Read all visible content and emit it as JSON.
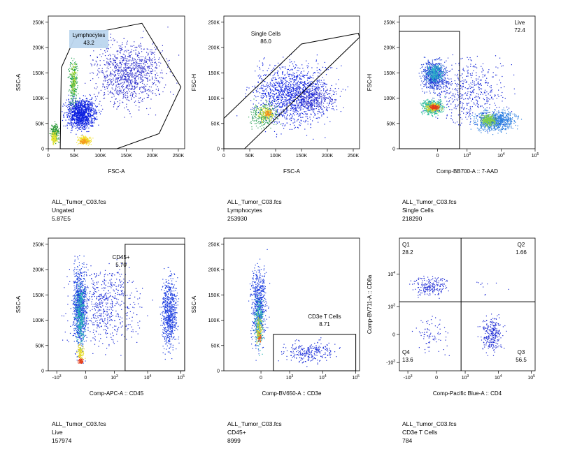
{
  "chart_data": [
    {
      "type": "scatter",
      "subtype": "flow-cytometry-density",
      "title": "ALL_Tumor_C03.fcs",
      "population": "Ungated",
      "event_count": "5.87E5",
      "xlabel": "FSC-A",
      "ylabel": "SSC-A",
      "xscale": "linear",
      "xlim": [
        0,
        262144
      ],
      "ylim": [
        0,
        262144
      ],
      "xticks": [
        {
          "v": 0,
          "l": "0"
        },
        {
          "v": 50000,
          "l": "50K"
        },
        {
          "v": 100000,
          "l": "100K"
        },
        {
          "v": 150000,
          "l": "150K"
        },
        {
          "v": 200000,
          "l": "200K"
        },
        {
          "v": 250000,
          "l": "250K"
        }
      ],
      "yticks": [
        {
          "v": 0,
          "l": "0"
        },
        {
          "v": 50000,
          "l": "50K"
        },
        {
          "v": 100000,
          "l": "100K"
        },
        {
          "v": 150000,
          "l": "150K"
        },
        {
          "v": 200000,
          "l": "200K"
        },
        {
          "v": 250000,
          "l": "250K"
        }
      ],
      "gates": [
        {
          "name": "Lymphocytes",
          "percent": "43.2",
          "label_position": "top-left",
          "label_highlight": true,
          "polygon": [
            [
              52000,
              222000
            ],
            [
              180000,
              248000
            ],
            [
              255000,
              122000
            ],
            [
              213000,
              30000
            ],
            [
              132000,
              0
            ],
            [
              23000,
              0
            ],
            [
              25000,
              160000
            ]
          ]
        }
      ],
      "clusters": [
        {
          "x": [
            20000,
            105000
          ],
          "y": [
            25000,
            115000
          ],
          "n": 1200,
          "color": "#0d21e0"
        },
        {
          "x": [
            55000,
            255000
          ],
          "y": [
            50000,
            245000
          ],
          "n": 1100,
          "color": "#2a2ccc"
        },
        {
          "x": [
            35000,
            60000
          ],
          "y": [
            60000,
            200000
          ],
          "n": 220,
          "color": "#1fa04e"
        },
        {
          "x": [
            40000,
            56000
          ],
          "y": [
            90000,
            180000
          ],
          "n": 90,
          "color": "#9bd12a"
        },
        {
          "x": [
            0,
            25000
          ],
          "y": [
            5000,
            60000
          ],
          "n": 220,
          "color": "#2e9a3a"
        },
        {
          "x": [
            3000,
            18000
          ],
          "y": [
            5000,
            40000
          ],
          "n": 140,
          "color": "#e7e32e"
        },
        {
          "x": [
            50000,
            90000
          ],
          "y": [
            5000,
            30000
          ],
          "n": 180,
          "color": "#f2df25"
        },
        {
          "x": [
            55000,
            80000
          ],
          "y": [
            8000,
            22000
          ],
          "n": 80,
          "color": "#f49a1c"
        }
      ]
    },
    {
      "type": "scatter",
      "subtype": "flow-cytometry-density",
      "title": "ALL_Tumor_C03.fcs",
      "population": "Lymphocytes",
      "event_count": "253930",
      "xlabel": "FSC-A",
      "ylabel": "FSC-H",
      "xscale": "linear",
      "xlim": [
        0,
        262144
      ],
      "ylim": [
        0,
        262144
      ],
      "xticks": [
        {
          "v": 0,
          "l": "0"
        },
        {
          "v": 50000,
          "l": "50K"
        },
        {
          "v": 100000,
          "l": "100K"
        },
        {
          "v": 150000,
          "l": "150K"
        },
        {
          "v": 200000,
          "l": "200K"
        },
        {
          "v": 250000,
          "l": "250K"
        }
      ],
      "yticks": [
        {
          "v": 0,
          "l": "0"
        },
        {
          "v": 50000,
          "l": "50K"
        },
        {
          "v": 100000,
          "l": "100K"
        },
        {
          "v": 150000,
          "l": "150K"
        },
        {
          "v": 200000,
          "l": "200K"
        },
        {
          "v": 250000,
          "l": "250K"
        }
      ],
      "gates": [
        {
          "name": "Single Cells",
          "percent": "86.0",
          "label_position": "top-left",
          "label_highlight": false,
          "polygon": [
            [
              0,
              60000
            ],
            [
              150000,
              207000
            ],
            [
              260000,
              228000
            ],
            [
              262000,
              220000
            ],
            [
              40000,
              0
            ],
            [
              0,
              0
            ]
          ]
        }
      ],
      "clusters": [
        {
          "x": [
            20000,
            250000
          ],
          "y": [
            15000,
            200000
          ],
          "n": 1400,
          "color": "#0d21e0"
        },
        {
          "x": [
            100000,
            240000
          ],
          "y": [
            60000,
            140000
          ],
          "n": 300,
          "color": "#3a36c8"
        },
        {
          "x": [
            35000,
            120000
          ],
          "y": [
            30000,
            105000
          ],
          "n": 240,
          "color": "#2b9f54"
        },
        {
          "x": [
            60000,
            105000
          ],
          "y": [
            50000,
            90000
          ],
          "n": 120,
          "color": "#e3e32a"
        },
        {
          "x": [
            75000,
            95000
          ],
          "y": [
            60000,
            80000
          ],
          "n": 50,
          "color": "#f0901b"
        }
      ]
    },
    {
      "type": "scatter",
      "subtype": "flow-cytometry-density",
      "title": "ALL_Tumor_C03.fcs",
      "population": "Single Cells",
      "event_count": "218290",
      "xlabel": "Comp-BB700-A :: 7-AAD",
      "ylabel": "FSC-H",
      "xscale": "biexponential",
      "xlim": [
        -1800,
        100000
      ],
      "ylim": [
        0,
        262144
      ],
      "xticks": [
        {
          "v": 0,
          "l": "0"
        },
        {
          "v": 1000,
          "l": "10^3"
        },
        {
          "v": 10000,
          "l": "10^4"
        },
        {
          "v": 100000,
          "l": "10^5"
        }
      ],
      "yticks": [
        {
          "v": 0,
          "l": "0"
        },
        {
          "v": 50000,
          "l": "50K"
        },
        {
          "v": 100000,
          "l": "100K"
        },
        {
          "v": 150000,
          "l": "150K"
        },
        {
          "v": 200000,
          "l": "200K"
        },
        {
          "v": 250000,
          "l": "250K"
        }
      ],
      "gates": [
        {
          "name": "Live",
          "percent": "72.4",
          "label_position": "top-right",
          "label_highlight": false,
          "rect": {
            "x1": -1800,
            "x2": 600,
            "y1": 0,
            "y2": 232000
          }
        }
      ],
      "clusters": [
        {
          "x": [
            -600,
            400
          ],
          "y": [
            100000,
            190000
          ],
          "n": 700,
          "color": "#1f3fd8"
        },
        {
          "x": [
            -400,
            250
          ],
          "y": [
            125000,
            175000
          ],
          "n": 260,
          "color": "#2bb0c6"
        },
        {
          "x": [
            -600,
            300
          ],
          "y": [
            60000,
            105000
          ],
          "n": 500,
          "color": "#2bbb9c"
        },
        {
          "x": [
            -400,
            150
          ],
          "y": [
            70000,
            95000
          ],
          "n": 220,
          "color": "#e9d72a"
        },
        {
          "x": [
            -280,
            80
          ],
          "y": [
            75000,
            90000
          ],
          "n": 160,
          "color": "#e33b1a"
        },
        {
          "x": [
            900,
            50000
          ],
          "y": [
            25000,
            85000
          ],
          "n": 800,
          "color": "#2a7de0"
        },
        {
          "x": [
            2000,
            9000
          ],
          "y": [
            40000,
            75000
          ],
          "n": 260,
          "color": "#7fd04a"
        },
        {
          "x": [
            -800,
            60000
          ],
          "y": [
            15000,
            210000
          ],
          "n": 500,
          "color": "#1324d6"
        }
      ]
    },
    {
      "type": "scatter",
      "subtype": "flow-cytometry-density",
      "title": "ALL_Tumor_C03.fcs",
      "population": "Live",
      "event_count": "157974",
      "xlabel": "Comp-APC-A :: CD45",
      "ylabel": "SSC-A",
      "xscale": "biexponential",
      "xlim": [
        -1800,
        130000
      ],
      "ylim": [
        0,
        262144
      ],
      "xticks": [
        {
          "v": -1000,
          "l": "-10^3"
        },
        {
          "v": 0,
          "l": "0"
        },
        {
          "v": 1000,
          "l": "10^3"
        },
        {
          "v": 10000,
          "l": "10^4"
        },
        {
          "v": 100000,
          "l": "10^5"
        }
      ],
      "yticks": [
        {
          "v": 0,
          "l": "0"
        },
        {
          "v": 50000,
          "l": "50K"
        },
        {
          "v": 100000,
          "l": "100K"
        },
        {
          "v": 150000,
          "l": "150K"
        },
        {
          "v": 200000,
          "l": "200K"
        },
        {
          "v": 250000,
          "l": "250K"
        }
      ],
      "gates": [
        {
          "name": "CD45+",
          "percent": "5.70",
          "label_position": "top-left",
          "label_highlight": false,
          "rect": {
            "x1": 2100,
            "x2": 160000,
            "y1": 0,
            "y2": 250000
          }
        }
      ],
      "clusters": [
        {
          "x": [
            -450,
            120
          ],
          "y": [
            10000,
            245000
          ],
          "n": 900,
          "color": "#1c45e0"
        },
        {
          "x": [
            -350,
            50
          ],
          "y": [
            20000,
            200000
          ],
          "n": 350,
          "color": "#2bb7b7"
        },
        {
          "x": [
            -300,
            0
          ],
          "y": [
            12000,
            60000
          ],
          "n": 120,
          "color": "#e5db2b"
        },
        {
          "x": [
            -250,
            -50
          ],
          "y": [
            12000,
            28000
          ],
          "n": 60,
          "color": "#e23a1b"
        },
        {
          "x": [
            20000,
            100000
          ],
          "y": [
            10000,
            220000
          ],
          "n": 700,
          "color": "#1e3fe0"
        },
        {
          "x": [
            -1500,
            20000
          ],
          "y": [
            5000,
            250000
          ],
          "n": 600,
          "color": "#1324d6"
        }
      ]
    },
    {
      "type": "scatter",
      "subtype": "flow-cytometry-density",
      "title": "ALL_Tumor_C03.fcs",
      "population": "CD45+",
      "event_count": "8999",
      "xlabel": "Comp-BV650-A :: CD3e",
      "ylabel": "SSC-A",
      "xscale": "biexponential",
      "xlim": [
        -1800,
        130000
      ],
      "ylim": [
        0,
        262144
      ],
      "xticks": [
        {
          "v": 0,
          "l": "0"
        },
        {
          "v": 1000,
          "l": "10^3"
        },
        {
          "v": 10000,
          "l": "10^4"
        },
        {
          "v": 100000,
          "l": "10^5"
        }
      ],
      "yticks": [
        {
          "v": 0,
          "l": "0"
        },
        {
          "v": 50000,
          "l": "50K"
        },
        {
          "v": 100000,
          "l": "100K"
        },
        {
          "v": 150000,
          "l": "150K"
        },
        {
          "v": 200000,
          "l": "200K"
        },
        {
          "v": 250000,
          "l": "250K"
        }
      ],
      "gates": [
        {
          "name": "CD3e T Cells",
          "percent": "8.71",
          "label_position": "top-right",
          "label_highlight": false,
          "rect": {
            "x1": 350,
            "x2": 100000,
            "y1": 0,
            "y2": 72000
          }
        }
      ],
      "clusters": [
        {
          "x": [
            -400,
            250
          ],
          "y": [
            10000,
            245000
          ],
          "n": 650,
          "color": "#1c3ee0"
        },
        {
          "x": [
            -250,
            120
          ],
          "y": [
            20000,
            170000
          ],
          "n": 260,
          "color": "#2ab5b2"
        },
        {
          "x": [
            -180,
            60
          ],
          "y": [
            40000,
            120000
          ],
          "n": 100,
          "color": "#d6d62a"
        },
        {
          "x": [
            -120,
            30
          ],
          "y": [
            50000,
            80000
          ],
          "n": 30,
          "color": "#e5531a"
        },
        {
          "x": [
            300,
            60000
          ],
          "y": [
            5000,
            70000
          ],
          "n": 250,
          "color": "#1428d8"
        }
      ]
    },
    {
      "type": "scatter",
      "subtype": "flow-cytometry-quadrant",
      "title": "ALL_Tumor_C03.fcs",
      "population": "CD3e T Cells",
      "event_count": "784",
      "xlabel": "Comp-Pacific Blue-A :: CD4",
      "ylabel": "Comp-BV711-A :: CD8a",
      "xscale": "biexponential",
      "yscale": "biexponential",
      "xlim": [
        -1800,
        130000
      ],
      "ylim": [
        -1800,
        130000
      ],
      "xticks": [
        {
          "v": -1000,
          "l": "-10^3"
        },
        {
          "v": 0,
          "l": "0"
        },
        {
          "v": 1000,
          "l": "10^3"
        },
        {
          "v": 10000,
          "l": "10^4"
        },
        {
          "v": 100000,
          "l": "10^5"
        }
      ],
      "yticks": [
        {
          "v": -1000,
          "l": "-10^3"
        },
        {
          "v": 0,
          "l": "0"
        },
        {
          "v": 1000,
          "l": "10^3"
        },
        {
          "v": 10000,
          "l": "10^4"
        }
      ],
      "quadrant_split": {
        "x": 750,
        "y": 1400
      },
      "quadrants": [
        {
          "name": "Q1",
          "percent": "28.2",
          "position": "top-left"
        },
        {
          "name": "Q2",
          "percent": "1.66",
          "position": "top-right"
        },
        {
          "name": "Q3",
          "percent": "56.5",
          "position": "bottom-right"
        },
        {
          "name": "Q4",
          "percent": "13.6",
          "position": "bottom-left"
        }
      ],
      "clusters": [
        {
          "x": [
            -1200,
            500
          ],
          "y": [
            1500,
            12000
          ],
          "n": 200,
          "color": "#1d2ad4"
        },
        {
          "x": [
            2000,
            20000
          ],
          "y": [
            -900,
            900
          ],
          "n": 260,
          "color": "#1d2ad4"
        },
        {
          "x": [
            -1200,
            600
          ],
          "y": [
            -1100,
            1100
          ],
          "n": 80,
          "color": "#1d2ad4"
        },
        {
          "x": [
            1000,
            30000
          ],
          "y": [
            1500,
            20000
          ],
          "n": 10,
          "color": "#1d2ad4"
        }
      ]
    }
  ]
}
